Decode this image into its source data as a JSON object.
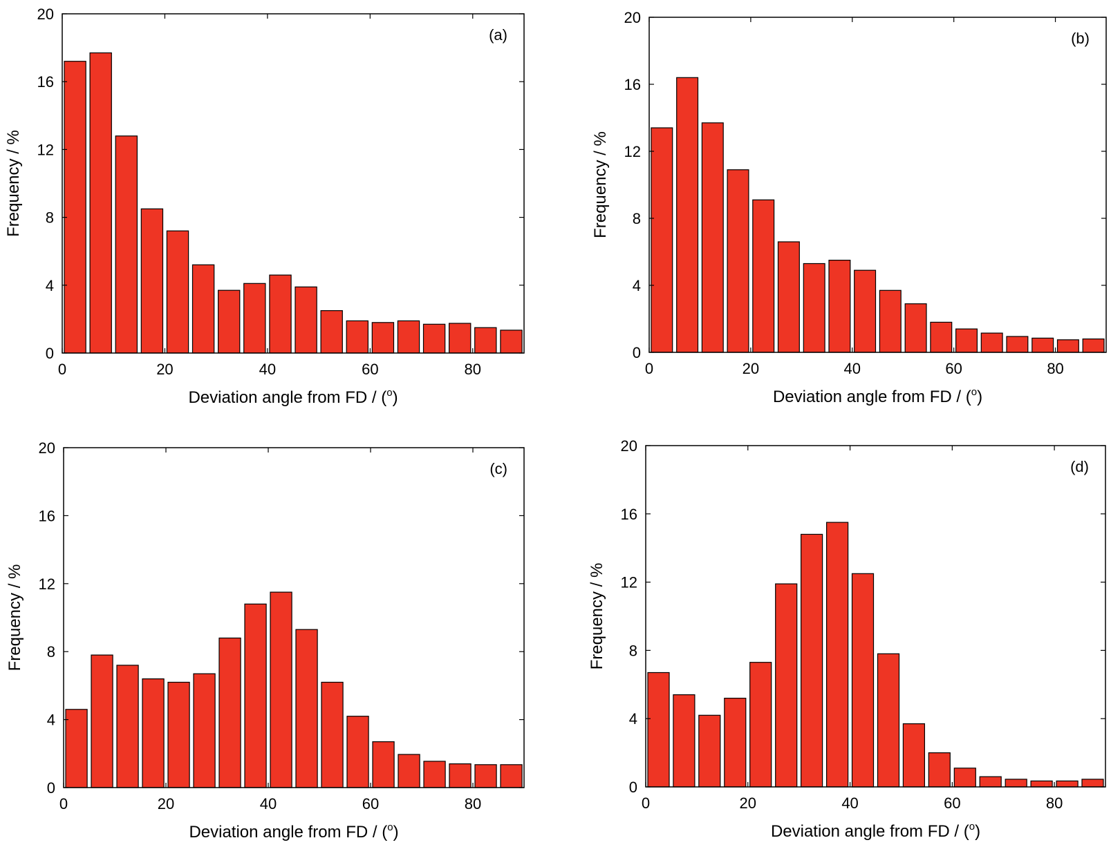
{
  "colors": {
    "bar_fill": "#ee3524",
    "bar_edge": "#000000",
    "axis": "#000000",
    "background": "#ffffff"
  },
  "chart_data": [
    {
      "type": "bar",
      "panel_label": "(a)",
      "xlabel": "Deviation angle from FD / (",
      "xlabel_superscript": "o",
      "xlabel_suffix": ")",
      "ylabel": "Frequency / %",
      "xlim": [
        0,
        90
      ],
      "ylim": [
        0,
        20
      ],
      "xticks": [
        0,
        20,
        40,
        60,
        80
      ],
      "yticks": [
        0,
        4,
        8,
        12,
        16,
        20
      ],
      "bin_width": 5,
      "categories": [
        2.5,
        7.5,
        12.5,
        17.5,
        22.5,
        27.5,
        32.5,
        37.5,
        42.5,
        47.5,
        52.5,
        57.5,
        62.5,
        67.5,
        72.5,
        77.5,
        82.5,
        87.5
      ],
      "values": [
        17.2,
        17.7,
        12.8,
        8.5,
        7.2,
        5.2,
        3.7,
        4.1,
        4.6,
        3.9,
        2.5,
        1.9,
        1.8,
        1.9,
        1.7,
        1.75,
        1.5,
        1.35
      ],
      "grid": false
    },
    {
      "type": "bar",
      "panel_label": "(b)",
      "xlabel": "Deviation angle from FD / (",
      "xlabel_superscript": "o",
      "xlabel_suffix": ")",
      "ylabel": "Frequency / %",
      "xlim": [
        0,
        90
      ],
      "ylim": [
        0,
        20
      ],
      "xticks": [
        0,
        20,
        40,
        60,
        80
      ],
      "yticks": [
        0,
        4,
        8,
        12,
        16,
        20
      ],
      "bin_width": 5,
      "categories": [
        2.5,
        7.5,
        12.5,
        17.5,
        22.5,
        27.5,
        32.5,
        37.5,
        42.5,
        47.5,
        52.5,
        57.5,
        62.5,
        67.5,
        72.5,
        77.5,
        82.5,
        87.5
      ],
      "values": [
        13.4,
        16.4,
        13.7,
        10.9,
        9.1,
        6.6,
        5.3,
        5.5,
        4.9,
        3.7,
        2.9,
        1.8,
        1.4,
        1.15,
        0.95,
        0.85,
        0.75,
        0.8
      ],
      "grid": false
    },
    {
      "type": "bar",
      "panel_label": "(c)",
      "xlabel": "Deviation angle from FD / (",
      "xlabel_superscript": "o",
      "xlabel_suffix": ")",
      "ylabel": "Frequency / %",
      "xlim": [
        0,
        90
      ],
      "ylim": [
        0,
        20
      ],
      "xticks": [
        0,
        20,
        40,
        60,
        80
      ],
      "yticks": [
        0,
        4,
        8,
        12,
        16,
        20
      ],
      "bin_width": 5,
      "categories": [
        2.5,
        7.5,
        12.5,
        17.5,
        22.5,
        27.5,
        32.5,
        37.5,
        42.5,
        47.5,
        52.5,
        57.5,
        62.5,
        67.5,
        72.5,
        77.5,
        82.5,
        87.5
      ],
      "values": [
        4.6,
        7.8,
        7.2,
        6.4,
        6.2,
        6.7,
        8.8,
        10.8,
        11.5,
        9.3,
        6.2,
        4.2,
        2.7,
        1.95,
        1.55,
        1.4,
        1.35,
        1.35
      ],
      "grid": false
    },
    {
      "type": "bar",
      "panel_label": "(d)",
      "xlabel": "Deviation angle from FD / (",
      "xlabel_superscript": "o",
      "xlabel_suffix": ")",
      "ylabel": "Frequency / %",
      "xlim": [
        0,
        90
      ],
      "ylim": [
        0,
        20
      ],
      "xticks": [
        0,
        20,
        40,
        60,
        80
      ],
      "yticks": [
        0,
        4,
        8,
        12,
        16,
        20
      ],
      "bin_width": 5,
      "categories": [
        2.5,
        7.5,
        12.5,
        17.5,
        22.5,
        27.5,
        32.5,
        37.5,
        42.5,
        47.5,
        52.5,
        57.5,
        62.5,
        67.5,
        72.5,
        77.5,
        82.5,
        87.5
      ],
      "values": [
        6.7,
        5.4,
        4.2,
        5.2,
        7.3,
        11.9,
        14.8,
        15.5,
        12.5,
        7.8,
        3.7,
        2.0,
        1.1,
        0.6,
        0.45,
        0.35,
        0.35,
        0.45
      ],
      "grid": false
    }
  ]
}
